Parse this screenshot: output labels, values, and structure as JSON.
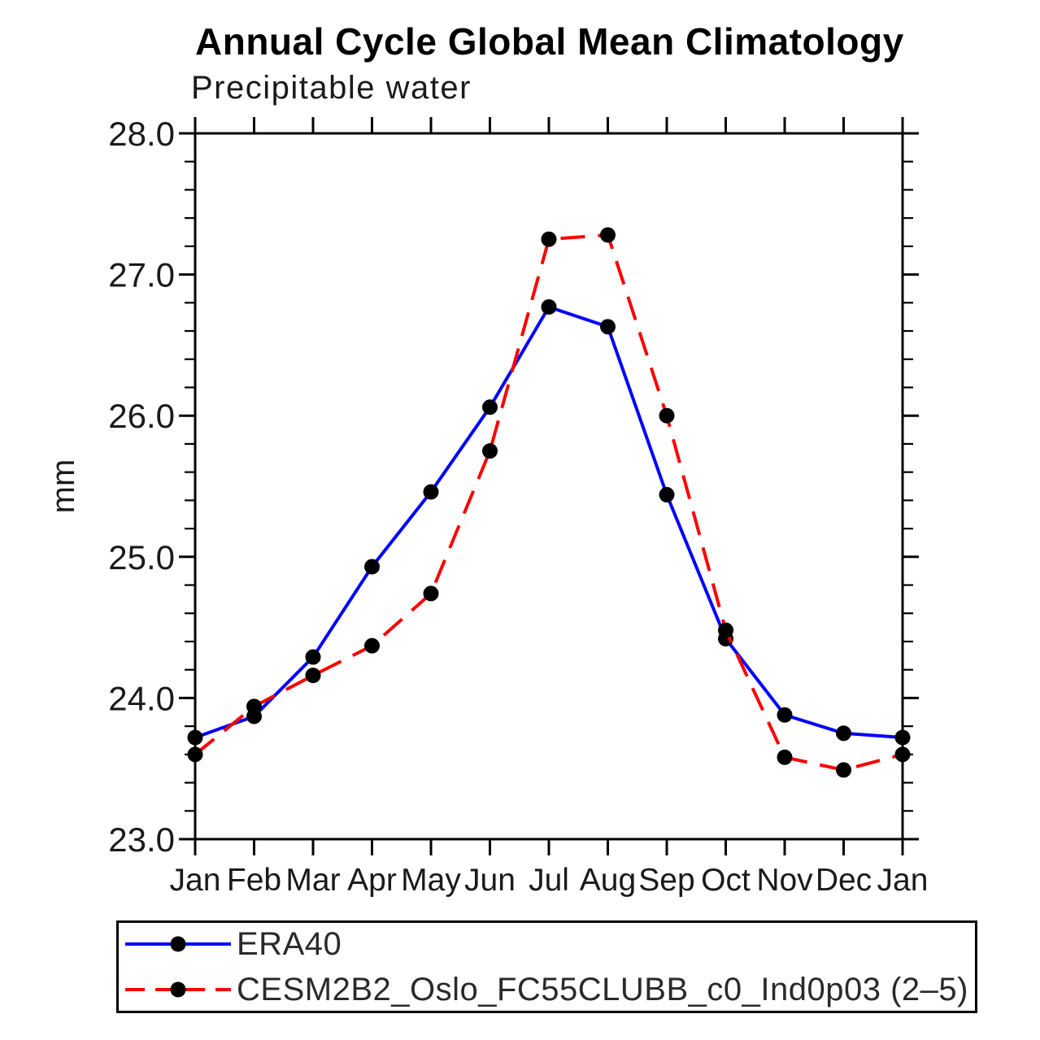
{
  "title": "Annual Cycle Global Mean Climatology",
  "subtitle": "Precipitable water",
  "y_axis": {
    "label": "mm",
    "min": 23.0,
    "max": 28.0,
    "major_step": 1.0,
    "minor_step": 0.2,
    "tick_labels": [
      "23.0",
      "24.0",
      "25.0",
      "26.0",
      "27.0",
      "28.0"
    ]
  },
  "x_axis": {
    "tick_labels": [
      "Jan",
      "Feb",
      "Mar",
      "Apr",
      "May",
      "Jun",
      "Jul",
      "Aug",
      "Sep",
      "Oct",
      "Nov",
      "Dec",
      "Jan"
    ]
  },
  "legend": {
    "entries": [
      {
        "label": "ERA40",
        "color": "#0000ff",
        "style": "solid",
        "marker": "black-dot"
      },
      {
        "label": "CESM2B2_Oslo_FC55CLUBB_c0_Ind0p03 (2–5)",
        "color": "#ff0000",
        "style": "dashed",
        "marker": "black-dot"
      }
    ]
  },
  "colors": {
    "axis": "#000000",
    "text": "#1a1a1a",
    "era40_line": "#0000ff",
    "cesm_line": "#ff0000",
    "marker": "#000000",
    "background": "#ffffff"
  },
  "chart_data": {
    "type": "line",
    "title": "Annual Cycle Global Mean Climatology",
    "subtitle": "Precipitable water",
    "xlabel": "",
    "ylabel": "mm",
    "ylim": [
      23.0,
      28.0
    ],
    "y_major_step": 1.0,
    "y_minor_step": 0.2,
    "grid": false,
    "legend_position": "bottom",
    "categories": [
      "Jan",
      "Feb",
      "Mar",
      "Apr",
      "May",
      "Jun",
      "Jul",
      "Aug",
      "Sep",
      "Oct",
      "Nov",
      "Dec",
      "Jan"
    ],
    "series": [
      {
        "name": "ERA40",
        "color": "#0000ff",
        "line_style": "solid",
        "marker": "circle",
        "marker_color": "#000000",
        "values": [
          23.72,
          23.87,
          24.29,
          24.93,
          25.46,
          26.06,
          26.77,
          26.63,
          25.44,
          24.42,
          23.88,
          23.75,
          23.72
        ]
      },
      {
        "name": "CESM2B2_Oslo_FC55CLUBB_c0_Ind0p03 (2–5)",
        "color": "#ff0000",
        "line_style": "dashed",
        "marker": "circle",
        "marker_color": "#000000",
        "values": [
          23.6,
          23.94,
          24.16,
          24.37,
          24.74,
          25.75,
          27.25,
          27.28,
          26.0,
          24.48,
          23.58,
          23.49,
          23.6
        ]
      }
    ]
  }
}
